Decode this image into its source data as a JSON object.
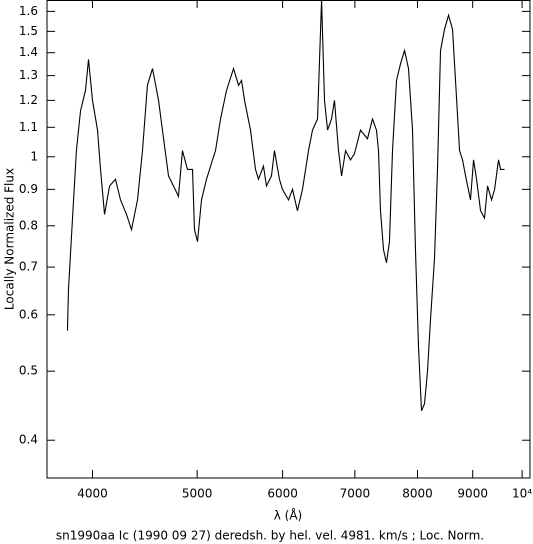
{
  "chart_data": {
    "type": "line",
    "title": "sn1990aa Ic (1990 09 27) deredsh. by hel. vel.  4981. km/s ;  Loc. Norm.",
    "xlabel": "λ (Å)",
    "ylabel": "Locally Normalized Flux",
    "xscale": "log",
    "yscale": "log",
    "xlim": [
      3630,
      10170
    ],
    "ylim": [
      0.354,
      1.66
    ],
    "xticks": [
      4000,
      5000,
      6000,
      7000,
      8000,
      9000,
      {
        "value": 10000,
        "label": "10⁴"
      }
    ],
    "yticks": [
      0.4,
      0.5,
      0.6,
      0.7,
      0.8,
      0.9,
      1,
      1.1,
      1.2,
      1.3,
      1.4,
      1.5,
      1.6
    ],
    "grid": false,
    "x": [
      3792,
      3800,
      3833,
      3865,
      3899,
      3941,
      3966,
      4000,
      4043,
      4069,
      4104,
      4148,
      4201,
      4246,
      4301,
      4347,
      4403,
      4450,
      4497,
      4546,
      4605,
      4655,
      4704,
      4754,
      4805,
      4846,
      4898,
      4951,
      4972,
      5004,
      5047,
      5101,
      5167,
      5200,
      5256,
      5324,
      5404,
      5462,
      5497,
      5532,
      5603,
      5663,
      5699,
      5760,
      5797,
      5859,
      5897,
      5960,
      5998,
      6076,
      6128,
      6193,
      6260,
      6341,
      6395,
      6464,
      6492,
      6520,
      6561,
      6604,
      6660,
      6702,
      6760,
      6804,
      6862,
      6935,
      6994,
      7084,
      7191,
      7268,
      7330,
      7362,
      7393,
      7441,
      7488,
      7536,
      7585,
      7650,
      7715,
      7782,
      7848,
      7916,
      7966,
      8018,
      8069,
      8121,
      8173,
      8225,
      8296,
      8349,
      8403,
      8475,
      8548,
      8621,
      8676,
      8751,
      8807,
      8864,
      8958,
      9016,
      9074,
      9152,
      9230,
      9290,
      9369,
      9430,
      9510,
      9551,
      9633
    ],
    "series": [
      {
        "name": "sn1990aa",
        "color": "#000000",
        "values": [
          0.57,
          0.65,
          0.82,
          1.02,
          1.16,
          1.24,
          1.37,
          1.2,
          1.09,
          0.96,
          0.83,
          0.91,
          0.93,
          0.87,
          0.83,
          0.79,
          0.87,
          1.02,
          1.26,
          1.33,
          1.2,
          1.06,
          0.94,
          0.91,
          0.88,
          1.02,
          0.96,
          0.96,
          0.79,
          0.76,
          0.87,
          0.93,
          0.99,
          1.02,
          1.13,
          1.24,
          1.33,
          1.26,
          1.28,
          1.2,
          1.09,
          0.96,
          0.93,
          0.97,
          0.91,
          0.94,
          1.02,
          0.93,
          0.9,
          0.87,
          0.9,
          0.84,
          0.9,
          1.02,
          1.09,
          1.13,
          1.37,
          1.66,
          1.2,
          1.09,
          1.13,
          1.2,
          1.02,
          0.94,
          1.02,
          0.99,
          1.01,
          1.09,
          1.06,
          1.13,
          1.09,
          1.02,
          0.84,
          0.74,
          0.71,
          0.76,
          1.02,
          1.28,
          1.35,
          1.41,
          1.33,
          1.09,
          0.74,
          0.54,
          0.44,
          0.45,
          0.5,
          0.59,
          0.72,
          0.96,
          1.41,
          1.51,
          1.58,
          1.51,
          1.28,
          1.02,
          0.99,
          0.94,
          0.87,
          0.99,
          0.93,
          0.84,
          0.82,
          0.91,
          0.87,
          0.9,
          0.99,
          0.96,
          0.96
        ]
      }
    ]
  }
}
